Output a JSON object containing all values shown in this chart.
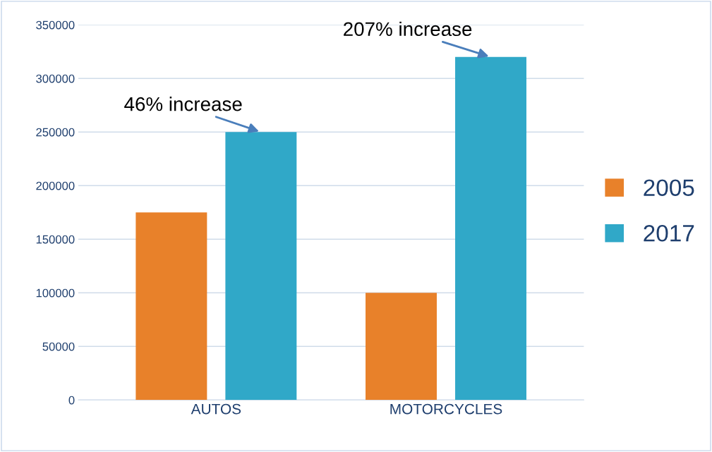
{
  "chart_data": {
    "type": "bar",
    "categories": [
      "AUTOS",
      "MOTORCYCLES"
    ],
    "series": [
      {
        "name": "2005",
        "color": "#e8812a",
        "values": [
          175000,
          100000
        ]
      },
      {
        "name": "2017",
        "color": "#30a8c8",
        "values": [
          250000,
          320000
        ]
      }
    ],
    "ylim": [
      0,
      350000
    ],
    "yticks": [
      0,
      50000,
      100000,
      150000,
      200000,
      250000,
      300000,
      350000
    ],
    "grid": "y",
    "legend": "right",
    "annotations": [
      "46% increase",
      "207% increase"
    ]
  }
}
